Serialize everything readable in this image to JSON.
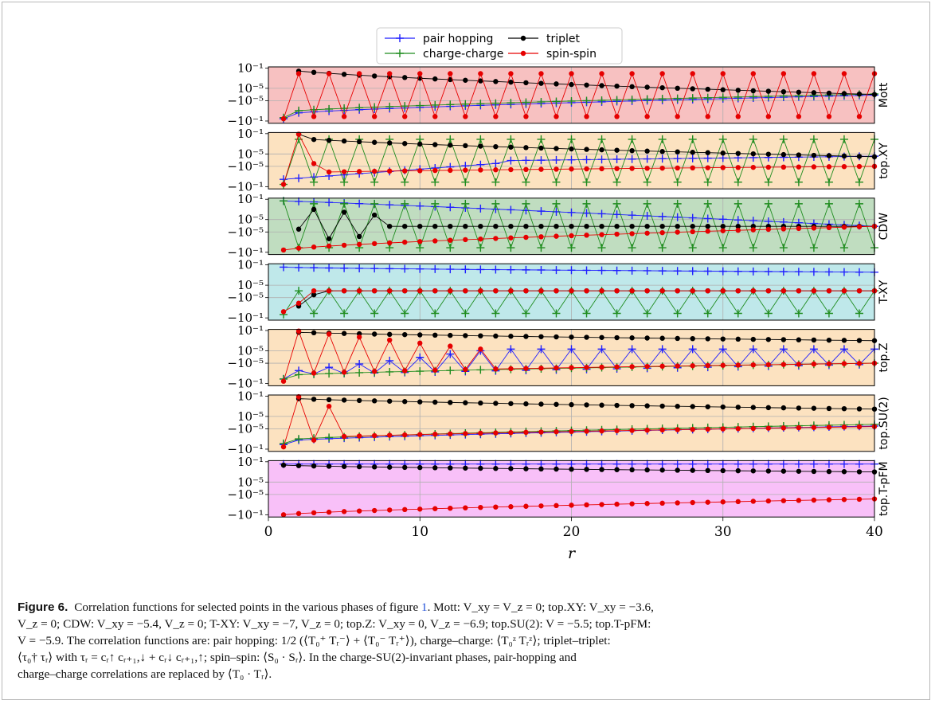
{
  "chart_data": {
    "type": "line",
    "xlabel": "r",
    "xlim": [
      0,
      40
    ],
    "x_ticks": [
      0,
      10,
      20,
      30,
      40
    ],
    "y_scale": "symlog",
    "y_tick_labels": [
      "10⁻¹",
      "10⁻⁵",
      "−10⁻⁵",
      "−10⁻¹"
    ],
    "grid": true,
    "legend_position": "top",
    "legend": [
      {
        "name": "pair hopping",
        "color": "#1f1fff",
        "marker": "plus"
      },
      {
        "name": "charge-charge",
        "color": "#1e8c1e",
        "marker": "plus"
      },
      {
        "name": "triplet",
        "color": "#000000",
        "marker": "dot"
      },
      {
        "name": "spin-spin",
        "color": "#e60000",
        "marker": "dot"
      }
    ],
    "panels": [
      {
        "label": "Mott",
        "bg": "#f7c1c1"
      },
      {
        "label": "top.XY",
        "bg": "#fce2c0"
      },
      {
        "label": "CDW",
        "bg": "#c0ddc0"
      },
      {
        "label": "T-XY",
        "bg": "#bfe8ea"
      },
      {
        "label": "top.Z",
        "bg": "#fce2c0"
      },
      {
        "label": "top.SU(2)",
        "bg": "#fce2c0"
      },
      {
        "label": "top.T-pFM",
        "bg": "#f8c0f8"
      }
    ]
  },
  "caption": {
    "label": "Figure 6.",
    "line1_pre": "Correlation functions for selected points in the various phases of figure ",
    "fig_ref": "1",
    "line1_post": ". Mott: V_xy = V_z = 0; top.XY: V_xy = −3.6,",
    "line2": "V_z = 0; CDW: V_xy = −5.4, V_z = 0; T-XY: V_xy = −7, V_z = 0; top.Z: V_xy = 0, V_z = −6.9; top.SU(2): V = −5.5; top.T-pFM:",
    "line3": "V = −5.9. The correlation functions are: pair hopping: 1/2 (⟨T₀⁺ Tᵣ⁻⟩ + ⟨T₀⁻ Tᵣ⁺⟩), charge–charge: ⟨T₀ᶻ Tᵣᶻ⟩; triplet–triplet:",
    "line4": "⟨τ₀† τᵣ⟩ with τᵣ = cᵣ↑ cᵣ₊₁,↓ + cᵣ↓ cᵣ₊₁,↑; spin–spin: ⟨S₀ · Sᵣ⟩. In the charge-SU(2)-invariant phases, pair-hopping and",
    "line5": "charge–charge correlations are replaced by ⟨T₀ · Tᵣ⟩."
  }
}
